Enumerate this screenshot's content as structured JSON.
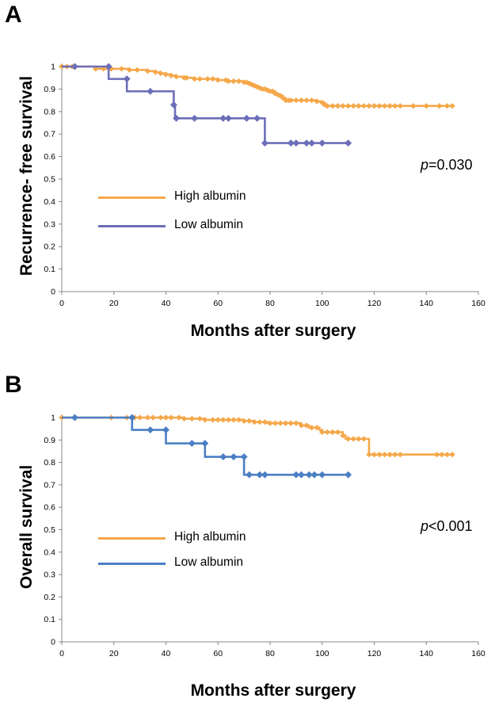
{
  "chart_data": [
    {
      "type": "line",
      "panel_label": "A",
      "xlabel": "Months after surgery",
      "ylabel": "Recurrence- free survival",
      "xlim": [
        0,
        160
      ],
      "ylim": [
        0,
        1
      ],
      "x_ticks": [
        "0",
        "20",
        "40",
        "60",
        "80",
        "100",
        "120",
        "140",
        "160"
      ],
      "y_ticks": [
        "0",
        "0.1",
        "0.2",
        "0.3",
        "0.4",
        "0.5",
        "0.6",
        "0.7",
        "0.8",
        "0.9",
        "1"
      ],
      "annotation": {
        "p_symbol": "p",
        "p_value": "=0.030"
      },
      "grid": false,
      "legend_position": "left-middle",
      "series": [
        {
          "name": "High albumin",
          "color": "#f5a84a",
          "step": [
            [
              0,
              1
            ],
            [
              13,
              0.99
            ],
            [
              20,
              0.99
            ],
            [
              26,
              0.985
            ],
            [
              33,
              0.98
            ],
            [
              36,
              0.975
            ],
            [
              38,
              0.97
            ],
            [
              40,
              0.965
            ],
            [
              42,
              0.96
            ],
            [
              44,
              0.955
            ],
            [
              47,
              0.95
            ],
            [
              51,
              0.945
            ],
            [
              60,
              0.94
            ],
            [
              64,
              0.935
            ],
            [
              70,
              0.93
            ],
            [
              72,
              0.925
            ],
            [
              73,
              0.92
            ],
            [
              74,
              0.915
            ],
            [
              75,
              0.91
            ],
            [
              76,
              0.905
            ],
            [
              77,
              0.9
            ],
            [
              79,
              0.895
            ],
            [
              80,
              0.89
            ],
            [
              82,
              0.88
            ],
            [
              83,
              0.875
            ],
            [
              84,
              0.87
            ],
            [
              85,
              0.86
            ],
            [
              86,
              0.85
            ],
            [
              98,
              0.845
            ],
            [
              100,
              0.84
            ],
            [
              101,
              0.83
            ],
            [
              102,
              0.825
            ],
            [
              150,
              0.825
            ]
          ],
          "censor_x": [
            0,
            2,
            4,
            13,
            16,
            19,
            23,
            26,
            29,
            33,
            36,
            38,
            40,
            42,
            44,
            47,
            48,
            51,
            53,
            56,
            58,
            60,
            63,
            64,
            66,
            68,
            70,
            71,
            72,
            73,
            74,
            75,
            76,
            77,
            78,
            79,
            80,
            81,
            82,
            83,
            84,
            85,
            86,
            87,
            88,
            90,
            92,
            94,
            96,
            98,
            100,
            101,
            102,
            104,
            106,
            108,
            110,
            112,
            114,
            116,
            118,
            120,
            122,
            124,
            126,
            128,
            130,
            135,
            140,
            145,
            148,
            150
          ]
        },
        {
          "name": "Low albumin",
          "color": "#6b6eb8",
          "step": [
            [
              0,
              1
            ],
            [
              18,
              0.945
            ],
            [
              25,
              0.89
            ],
            [
              43,
              0.83
            ],
            [
              43.5,
              0.77
            ],
            [
              78,
              0.66
            ],
            [
              110,
              0.66
            ]
          ],
          "censor_x": [
            5,
            18,
            25,
            34,
            43,
            44,
            51,
            62,
            64,
            71,
            75,
            78,
            88,
            90,
            94,
            96,
            100,
            110
          ],
          "censor_y": [
            1,
            1,
            0.945,
            0.89,
            0.83,
            0.77,
            0.77,
            0.77,
            0.77,
            0.77,
            0.77,
            0.66,
            0.66,
            0.66,
            0.66,
            0.66,
            0.66,
            0.66
          ]
        }
      ]
    },
    {
      "type": "line",
      "panel_label": "B",
      "xlabel": "Months after surgery",
      "ylabel": "Overall survival",
      "xlim": [
        0,
        160
      ],
      "ylim": [
        0,
        1
      ],
      "x_ticks": [
        "0",
        "20",
        "40",
        "60",
        "80",
        "100",
        "120",
        "140",
        "160"
      ],
      "y_ticks": [
        "0",
        "0.1",
        "0.2",
        "0.3",
        "0.4",
        "0.5",
        "0.6",
        "0.7",
        "0.8",
        "0.9",
        "1"
      ],
      "annotation": {
        "p_symbol": "p",
        "p_value": "<0.001"
      },
      "grid": false,
      "legend_position": "left-middle",
      "series": [
        {
          "name": "High albumin",
          "color": "#f5a84a",
          "step": [
            [
              0,
              1
            ],
            [
              47,
              0.995
            ],
            [
              55,
              0.99
            ],
            [
              70,
              0.985
            ],
            [
              74,
              0.98
            ],
            [
              79,
              0.975
            ],
            [
              92,
              0.965
            ],
            [
              95,
              0.955
            ],
            [
              99,
              0.945
            ],
            [
              100,
              0.935
            ],
            [
              108,
              0.92
            ],
            [
              109,
              0.905
            ],
            [
              118,
              0.835
            ],
            [
              150,
              0.835
            ]
          ],
          "censor_x": [
            0,
            19,
            25,
            28,
            30,
            33,
            35,
            38,
            40,
            42,
            45,
            47,
            50,
            53,
            55,
            58,
            60,
            62,
            64,
            66,
            68,
            70,
            72,
            74,
            76,
            78,
            80,
            82,
            84,
            86,
            88,
            90,
            92,
            94,
            96,
            98,
            100,
            102,
            104,
            106,
            108,
            110,
            112,
            114,
            116,
            118,
            120,
            122,
            124,
            126,
            128,
            130,
            144,
            146,
            148,
            150
          ]
        },
        {
          "name": "Low albumin",
          "color": "#4a7ec4",
          "step": [
            [
              0,
              1
            ],
            [
              27,
              0.945
            ],
            [
              40,
              0.885
            ],
            [
              55,
              0.825
            ],
            [
              70,
              0.745
            ],
            [
              110,
              0.745
            ]
          ],
          "censor_x": [
            5,
            27,
            34,
            40,
            50,
            55,
            62,
            66,
            70,
            72,
            76,
            78,
            90,
            92,
            95,
            97,
            100,
            110
          ],
          "censor_y": [
            1,
            1,
            0.945,
            0.945,
            0.885,
            0.885,
            0.825,
            0.825,
            0.825,
            0.745,
            0.745,
            0.745,
            0.745,
            0.745,
            0.745,
            0.745,
            0.745,
            0.745
          ]
        }
      ]
    }
  ]
}
